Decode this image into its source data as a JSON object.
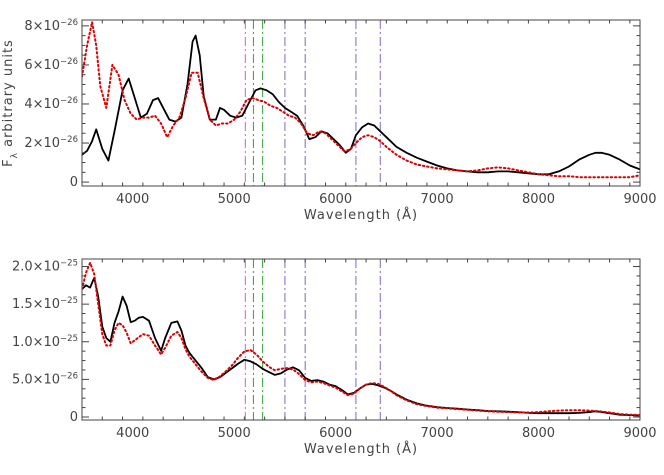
{
  "chart_data": [
    {
      "type": "line",
      "xlabel": "Wavelength (Å)",
      "ylabel": "F_λ arbitrary units",
      "xlim": [
        3500,
        9000
      ],
      "ylim": [
        -2e-27,
        8.3e-26
      ],
      "grid": false,
      "x_ticks": [
        4000,
        5000,
        6000,
        7000,
        8000,
        9000
      ],
      "x_tick_labels": [
        "4000",
        "5000",
        "6000",
        "7000",
        "8000",
        "9000"
      ],
      "y_ticks": [
        0,
        2e-26,
        4e-26,
        6e-26,
        8e-26
      ],
      "y_tick_labels": [
        {
          "mantissa": "0",
          "exponent": ""
        },
        {
          "mantissa": "2×10",
          "exponent": "−26"
        },
        {
          "mantissa": "4×10",
          "exponent": "−26"
        },
        {
          "mantissa": "6×10",
          "exponent": "−26"
        },
        {
          "mantissa": "8×10",
          "exponent": "−26"
        }
      ],
      "vertical_lines": [
        {
          "x": 5110,
          "color": "#dd66dd"
        },
        {
          "x": 5190,
          "color": "#44aa44"
        },
        {
          "x": 5280,
          "color": "#44aa44"
        },
        {
          "x": 5500,
          "color": "#8877cc"
        },
        {
          "x": 5700,
          "color": "#8877cc"
        },
        {
          "x": 6200,
          "color": "#8877cc"
        },
        {
          "x": 6440,
          "color": "#8877cc"
        }
      ],
      "series": [
        {
          "style": "solid",
          "color": "#000000",
          "x": [
            3500,
            3550,
            3600,
            3640,
            3700,
            3760,
            3820,
            3900,
            3960,
            4020,
            4080,
            4140,
            4200,
            4250,
            4300,
            4360,
            4420,
            4480,
            4540,
            4590,
            4620,
            4660,
            4700,
            4760,
            4820,
            4860,
            4900,
            4960,
            5020,
            5080,
            5150,
            5210,
            5260,
            5320,
            5380,
            5440,
            5500,
            5560,
            5620,
            5680,
            5740,
            5800,
            5860,
            5920,
            5980,
            6040,
            6100,
            6150,
            6200,
            6260,
            6320,
            6380,
            6440,
            6500,
            6600,
            6700,
            6800,
            6900,
            7000,
            7100,
            7200,
            7300,
            7400,
            7500,
            7600,
            7700,
            7800,
            7900,
            8000,
            8100,
            8200,
            8300,
            8400,
            8500,
            8560,
            8620,
            8700,
            8800,
            8900,
            9000
          ],
          "y": [
            1.4e-26,
            1.6e-26,
            2.1e-26,
            2.7e-26,
            1.7e-26,
            1.1e-26,
            2.6e-26,
            4.7e-26,
            5.3e-26,
            4.3e-26,
            3.3e-26,
            3.5e-26,
            4.2e-26,
            4.3e-26,
            3.8e-26,
            3.2e-26,
            3.1e-26,
            3.3e-26,
            5e-26,
            7.2e-26,
            7.5e-26,
            6.5e-26,
            4.4e-26,
            3.2e-26,
            3.2e-26,
            3.8e-26,
            3.7e-26,
            3.4e-26,
            3.3e-26,
            3.4e-26,
            4.1e-26,
            4.7e-26,
            4.8e-26,
            4.7e-26,
            4.5e-26,
            4.1e-26,
            3.8e-26,
            3.6e-26,
            3.4e-26,
            2.9e-26,
            2.2e-26,
            2.3e-26,
            2.6e-26,
            2.5e-26,
            2.2e-26,
            1.9e-26,
            1.5e-26,
            1.7e-26,
            2.4e-26,
            2.8e-26,
            3e-26,
            2.9e-26,
            2.6e-26,
            2.3e-26,
            1.8e-26,
            1.5e-26,
            1.25e-26,
            1.05e-26,
            8.5e-27,
            7e-27,
            6e-27,
            5.5e-27,
            5e-27,
            5e-27,
            5.5e-27,
            5.5e-27,
            5e-27,
            4.5e-27,
            4e-27,
            4e-27,
            5.5e-27,
            8e-27,
            1.15e-26,
            1.4e-26,
            1.5e-26,
            1.5e-26,
            1.4e-26,
            1.15e-26,
            8.5e-27,
            6.5e-27
          ]
        },
        {
          "style": "dotted",
          "color": "#dd0000",
          "x": [
            3500,
            3550,
            3600,
            3640,
            3680,
            3740,
            3800,
            3860,
            3920,
            3980,
            4040,
            4100,
            4160,
            4220,
            4280,
            4340,
            4400,
            4460,
            4520,
            4580,
            4640,
            4700,
            4760,
            4820,
            4880,
            4940,
            5000,
            5060,
            5120,
            5180,
            5240,
            5300,
            5360,
            5420,
            5480,
            5540,
            5600,
            5660,
            5720,
            5780,
            5840,
            5900,
            5960,
            6020,
            6080,
            6140,
            6200,
            6260,
            6320,
            6380,
            6440,
            6500,
            6600,
            6700,
            6800,
            6900,
            7000,
            7100,
            7200,
            7300,
            7400,
            7500,
            7600,
            7700,
            7800,
            7900,
            8000,
            8100,
            8200,
            8300,
            8400,
            8500,
            8600,
            8700,
            8800,
            8900,
            9000
          ],
          "y": [
            5.4e-26,
            7e-26,
            8.2e-26,
            7e-26,
            4.9e-26,
            3.8e-26,
            6e-26,
            5.5e-26,
            4.2e-26,
            3.5e-26,
            3.2e-26,
            3.3e-26,
            3.3e-26,
            3.4e-26,
            3e-26,
            2.3e-26,
            2.9e-26,
            3.3e-26,
            4.3e-26,
            5.6e-26,
            5.6e-26,
            4.3e-26,
            3.2e-26,
            2.9e-26,
            3e-26,
            3e-26,
            3.2e-26,
            3.6e-26,
            4.2e-26,
            4.3e-26,
            4.2e-26,
            4.1e-26,
            3.9e-26,
            3.8e-26,
            3.6e-26,
            3.4e-26,
            3.3e-26,
            3e-26,
            2.5e-26,
            2.4e-26,
            2.6e-26,
            2.5e-26,
            2.2e-26,
            1.9e-26,
            1.6e-26,
            1.65e-26,
            2e-26,
            2.3e-26,
            2.4e-26,
            2.3e-26,
            2.1e-26,
            1.8e-26,
            1.4e-26,
            1.1e-26,
            9e-27,
            8e-27,
            7e-27,
            6.5e-27,
            6e-27,
            5.5e-27,
            6e-27,
            7e-27,
            7.5e-27,
            7e-27,
            6e-27,
            5e-27,
            4e-27,
            3.5e-27,
            3e-27,
            3e-27,
            2.5e-27,
            2.5e-27,
            2.5e-27,
            2.5e-27,
            2.5e-27,
            2.5e-27,
            3.5e-27
          ]
        }
      ]
    },
    {
      "type": "line",
      "xlabel": "Wavelength (Å)",
      "ylabel": "",
      "xlim": [
        3500,
        9000
      ],
      "ylim": [
        -4e-27,
        2.1e-25
      ],
      "grid": false,
      "x_ticks": [
        4000,
        5000,
        6000,
        7000,
        8000,
        9000
      ],
      "x_tick_labels": [
        "4000",
        "5000",
        "6000",
        "7000",
        "8000",
        "9000"
      ],
      "y_ticks": [
        0,
        5e-26,
        1e-25,
        1.5e-25,
        2e-25
      ],
      "y_tick_labels": [
        {
          "mantissa": "0",
          "exponent": ""
        },
        {
          "mantissa": "5.0×10",
          "exponent": "−26"
        },
        {
          "mantissa": "1.0×10",
          "exponent": "−25"
        },
        {
          "mantissa": "1.5×10",
          "exponent": "−25"
        },
        {
          "mantissa": "2.0×10",
          "exponent": "−25"
        }
      ],
      "vertical_lines": [
        {
          "x": 5110,
          "color": "#dd66dd"
        },
        {
          "x": 5190,
          "color": "#44aa44"
        },
        {
          "x": 5280,
          "color": "#44aa44"
        },
        {
          "x": 5500,
          "color": "#8877cc"
        },
        {
          "x": 5700,
          "color": "#8877cc"
        },
        {
          "x": 6200,
          "color": "#8877cc"
        },
        {
          "x": 6440,
          "color": "#8877cc"
        }
      ],
      "series": [
        {
          "style": "solid",
          "color": "#000000",
          "x": [
            3500,
            3540,
            3580,
            3620,
            3660,
            3700,
            3740,
            3780,
            3820,
            3860,
            3900,
            3940,
            3980,
            4020,
            4060,
            4100,
            4160,
            4220,
            4280,
            4320,
            4380,
            4440,
            4480,
            4520,
            4560,
            4620,
            4680,
            4740,
            4800,
            4860,
            4920,
            4980,
            5040,
            5100,
            5160,
            5220,
            5280,
            5340,
            5400,
            5460,
            5520,
            5580,
            5640,
            5700,
            5760,
            5820,
            5880,
            5940,
            6000,
            6060,
            6120,
            6180,
            6240,
            6300,
            6360,
            6420,
            6480,
            6540,
            6600,
            6700,
            6800,
            6900,
            7000,
            7100,
            7200,
            7300,
            7400,
            7500,
            7600,
            7700,
            7800,
            7900,
            8000,
            8100,
            8200,
            8300,
            8400,
            8500,
            8550,
            8600,
            8700,
            8800,
            8900,
            9000
          ],
          "y": [
            1.7e-25,
            1.75e-25,
            1.72e-25,
            1.85e-25,
            1.6e-25,
            1.2e-25,
            1.05e-25,
            1e-25,
            1.25e-25,
            1.4e-25,
            1.6e-25,
            1.48e-25,
            1.26e-25,
            1.28e-25,
            1.32e-25,
            1.33e-25,
            1.28e-25,
            1.05e-25,
            8.8e-26,
            1.05e-25,
            1.25e-25,
            1.27e-25,
            1.15e-25,
            9.5e-26,
            8.5e-26,
            7.5e-26,
            6.5e-26,
            5.3e-26,
            5e-26,
            5.3e-26,
            5.9e-26,
            6.5e-26,
            7.1e-26,
            7.6e-26,
            7.4e-26,
            7e-26,
            6.4e-26,
            6e-26,
            5.6e-26,
            5.8e-26,
            6.3e-26,
            6.6e-26,
            6.2e-26,
            5.2e-26,
            4.8e-26,
            4.9e-26,
            4.7e-26,
            4.3e-26,
            4.1e-26,
            3.6e-26,
            3e-26,
            3.2e-26,
            3.8e-26,
            4.3e-26,
            4.4e-26,
            4.2e-26,
            3.9e-26,
            3.5e-26,
            3e-26,
            2.3e-26,
            1.8e-26,
            1.5e-26,
            1.3e-26,
            1.2e-26,
            1.1e-26,
            1e-26,
            9e-27,
            8e-27,
            7.5e-27,
            7e-27,
            6.5e-27,
            5.5e-27,
            5e-27,
            5e-27,
            5e-27,
            5e-27,
            5.5e-27,
            6.5e-27,
            7.5e-27,
            7e-27,
            5e-27,
            3e-27,
            2.5e-27,
            2e-27
          ]
        },
        {
          "style": "dotted",
          "color": "#dd0000",
          "x": [
            3500,
            3540,
            3580,
            3620,
            3660,
            3700,
            3740,
            3780,
            3820,
            3860,
            3900,
            3940,
            3980,
            4020,
            4060,
            4100,
            4160,
            4220,
            4280,
            4320,
            4380,
            4440,
            4480,
            4520,
            4560,
            4620,
            4680,
            4740,
            4800,
            4860,
            4920,
            4980,
            5040,
            5100,
            5160,
            5220,
            5280,
            5340,
            5400,
            5460,
            5520,
            5580,
            5640,
            5700,
            5760,
            5820,
            5880,
            5940,
            6000,
            6060,
            6120,
            6180,
            6240,
            6300,
            6360,
            6420,
            6480,
            6540,
            6600,
            6700,
            6800,
            6900,
            7000,
            7100,
            7200,
            7300,
            7400,
            7500,
            7600,
            7700,
            7800,
            7900,
            8000,
            8100,
            8200,
            8300,
            8400,
            8500,
            8550,
            8600,
            8700,
            8800,
            8900,
            9000
          ],
          "y": [
            1.7e-25,
            1.92e-25,
            2.05e-25,
            1.9e-25,
            1.5e-25,
            1.1e-25,
            9.5e-26,
            9.5e-26,
            1.15e-25,
            1.25e-25,
            1.22e-25,
            1.12e-25,
            9.8e-26,
            1.02e-25,
            1.06e-25,
            1.1e-25,
            1.08e-25,
            9.5e-26,
            8.3e-26,
            9.2e-26,
            1.08e-25,
            1.13e-25,
            1.05e-25,
            9e-26,
            8e-26,
            7e-26,
            6e-26,
            5.2e-26,
            4.9e-26,
            5.4e-26,
            6.1e-26,
            6.9e-26,
            7.9e-26,
            8.7e-26,
            8.9e-26,
            8.3e-26,
            7.4e-26,
            6.7e-26,
            6.2e-26,
            6.4e-26,
            6.5e-26,
            6.3e-26,
            5.7e-26,
            4.9e-26,
            4.6e-26,
            4.7e-26,
            4.5e-26,
            4.2e-26,
            3.9e-26,
            3.4e-26,
            2.9e-26,
            3.1e-26,
            3.8e-26,
            4.3e-26,
            4.5e-26,
            4.4e-26,
            4e-26,
            3.5e-26,
            2.9e-26,
            2.2e-26,
            1.7e-26,
            1.45e-26,
            1.25e-26,
            1.15e-26,
            1.05e-26,
            9.5e-27,
            8.5e-27,
            7.5e-27,
            7e-27,
            6.5e-27,
            6e-27,
            6e-27,
            6.5e-27,
            7.5e-27,
            8.5e-27,
            9e-27,
            9e-27,
            8.5e-27,
            8e-27,
            7.5e-27,
            6e-27,
            4e-27,
            3e-27,
            2.5e-27
          ]
        }
      ]
    }
  ]
}
